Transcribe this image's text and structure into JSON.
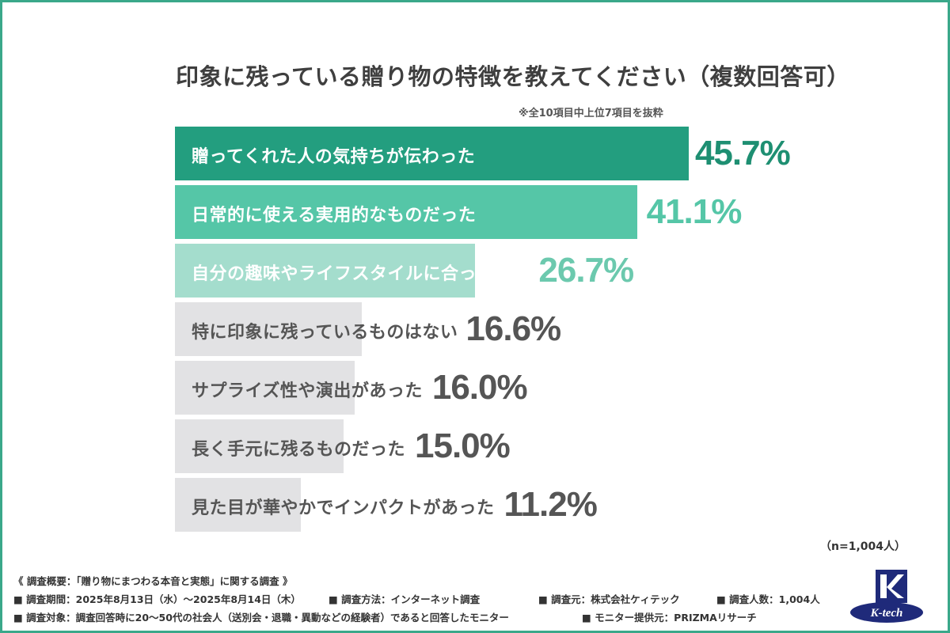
{
  "header": {
    "title": "印象に残っている贈り物の特徴を教えてください（複数回答可）",
    "note": "※全10項目中上位7項目を抜粋"
  },
  "chart_data": {
    "type": "bar",
    "orientation": "horizontal",
    "categories": [
      "贈ってくれた人の気持ちが伝わった",
      "日常的に使える実用的なものだった",
      "自分の趣味やライフスタイルに合っていた",
      "特に印象に残っているものはない",
      "サプライズ性や演出があった",
      "長く手元に残るものだった",
      "見た目が華やかでインパクトがあった"
    ],
    "values": [
      45.7,
      41.1,
      26.7,
      16.6,
      16.0,
      15.0,
      11.2
    ],
    "value_labels": [
      "45.7%",
      "41.1%",
      "26.7%",
      "16.6%",
      "16.0%",
      "15.0%",
      "11.2%"
    ],
    "xlim": [
      0,
      50
    ],
    "grid": false,
    "bar_colors": [
      "#239e7f",
      "#55c6a7",
      "#a4ddcd",
      "#e2e2e4",
      "#e2e2e4",
      "#e2e2e4",
      "#e2e2e4"
    ],
    "label_colors": [
      "#ffffff",
      "#ffffff",
      "#ffffff",
      "#555555",
      "#555555",
      "#555555",
      "#555555"
    ],
    "value_colors": [
      "#1e8f72",
      "#55c6a7",
      "#6cc9ae",
      "#555555",
      "#555555",
      "#555555",
      "#555555"
    ],
    "sample_note": "（n=1,004人）"
  },
  "footer": {
    "summary": "《 調査概要：「贈り物にまつわる本音と実態」に関する調査 》",
    "period": "■ 調査期間：2025年8月13日（水）～2025年8月14日（木）",
    "method": "■ 調査方法：インターネット調査",
    "source": "■ 調査元：株式会社ケィテック",
    "count": "■ 調査人数：1,004人",
    "target": "■ 調査対象：調査回答時に20～50代の社会人（送別会・退職・異動などの経験者）であると回答したモニター",
    "provider": "■ モニター提供元：PRIZMAリサーチ"
  },
  "logo": {
    "text": "K-tech",
    "color": "#1f2a7a"
  }
}
